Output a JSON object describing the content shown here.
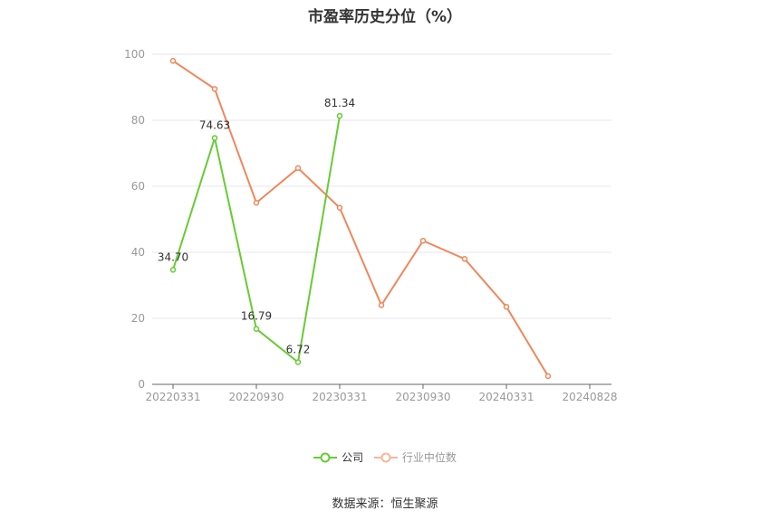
{
  "chart_data": {
    "type": "line",
    "title": "市盈率历史分位（%）",
    "xlabel": "",
    "ylabel": "",
    "ylim": [
      0,
      100
    ],
    "y_ticks": [
      "0",
      "20",
      "40",
      "60",
      "80",
      "100"
    ],
    "x_tick_labels": [
      "20220331",
      "20220930",
      "20230331",
      "20230930",
      "20240331",
      "20240828"
    ],
    "x": [
      "20220331",
      "20220630",
      "20220930",
      "20221230",
      "20230331",
      "20230630",
      "20230930",
      "20231229",
      "20240331",
      "20240630"
    ],
    "series": [
      {
        "name": "公司",
        "color": "#66cc33",
        "values": [
          34.7,
          74.63,
          16.79,
          6.72,
          81.34,
          null,
          null,
          null,
          null,
          null
        ],
        "data_labels": [
          "34.70",
          "74.63",
          "16.79",
          "6.72",
          "81.34",
          null,
          null,
          null,
          null,
          null
        ]
      },
      {
        "name": "行业中位数",
        "color": "#f0875a",
        "values": [
          98,
          89.5,
          55,
          65.5,
          53.5,
          24,
          43.5,
          38,
          23.5,
          2.5
        ],
        "data_labels": [
          null,
          null,
          null,
          null,
          null,
          null,
          null,
          null,
          null,
          null
        ]
      }
    ],
    "grid": true,
    "legend_position": "bottom-center"
  },
  "source_text": "数据来源：恒生聚源"
}
